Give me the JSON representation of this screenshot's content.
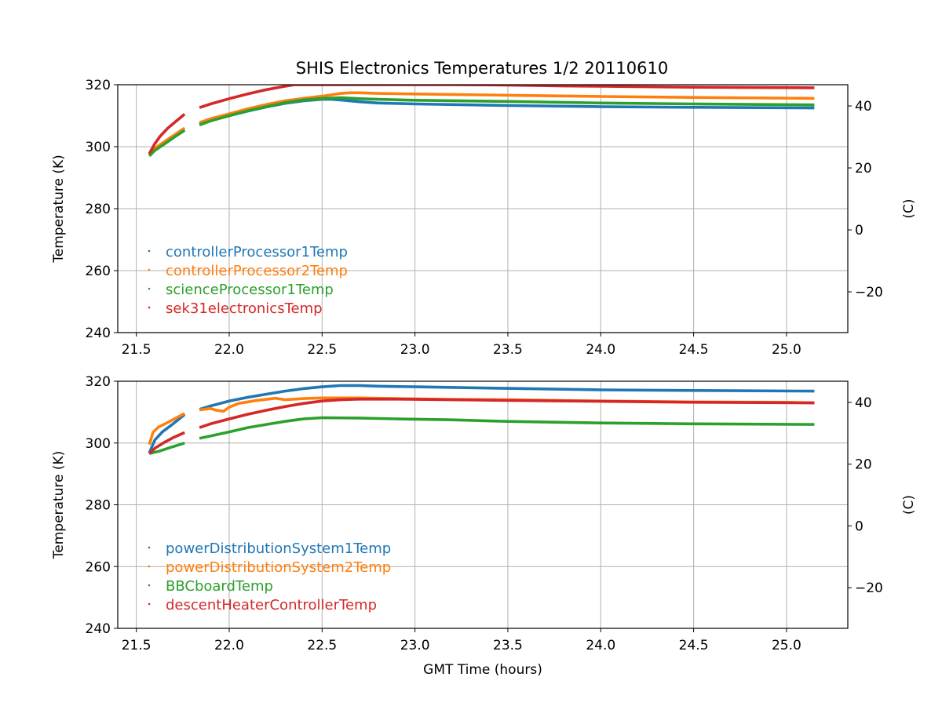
{
  "chart_data": [
    {
      "type": "line",
      "title": "SHIS Electronics Temperatures 1/2 20110610",
      "xlabel": "",
      "ylabel": "Temperature (K)",
      "y2label": "(C)",
      "xlim": [
        21.4,
        25.33
      ],
      "ylim": [
        240,
        320
      ],
      "y2lim": [
        -33.15,
        46.85
      ],
      "xticks": [
        "21.5",
        "22.0",
        "22.5",
        "23.0",
        "23.5",
        "24.0",
        "24.5",
        "25.0"
      ],
      "yticks": [
        "240",
        "260",
        "280",
        "300",
        "320"
      ],
      "y2ticks": [
        "−20",
        "0",
        "20",
        "40"
      ],
      "grid": true,
      "legend_position": "lower-left",
      "series": [
        {
          "name": "controllerProcessor1Temp",
          "color": "#1f77b4",
          "segments": [
            [
              [
                21.57,
                297.2
              ],
              [
                21.6,
                299.0
              ],
              [
                21.65,
                301.0
              ],
              [
                21.7,
                303.0
              ],
              [
                21.76,
                305.4
              ]
            ],
            [
              [
                21.84,
                307.2
              ],
              [
                21.9,
                308.5
              ],
              [
                22.0,
                310.0
              ],
              [
                22.1,
                311.5
              ],
              [
                22.2,
                312.8
              ],
              [
                22.3,
                314.0
              ],
              [
                22.4,
                314.8
              ],
              [
                22.5,
                315.3
              ],
              [
                22.55,
                315.3
              ],
              [
                22.6,
                315.1
              ],
              [
                22.7,
                314.5
              ],
              [
                22.8,
                314.1
              ],
              [
                23.0,
                313.8
              ],
              [
                23.5,
                313.3
              ],
              [
                24.0,
                312.9
              ],
              [
                24.5,
                312.7
              ],
              [
                25.15,
                312.5
              ]
            ]
          ]
        },
        {
          "name": "controllerProcessor2Temp",
          "color": "#ff7f0e",
          "segments": [
            [
              [
                21.57,
                297.5
              ],
              [
                21.6,
                299.5
              ],
              [
                21.65,
                301.6
              ],
              [
                21.7,
                303.6
              ],
              [
                21.76,
                306.0
              ]
            ],
            [
              [
                21.84,
                307.8
              ],
              [
                21.9,
                309.0
              ],
              [
                22.0,
                310.6
              ],
              [
                22.1,
                312.2
              ],
              [
                22.2,
                313.6
              ],
              [
                22.3,
                314.8
              ],
              [
                22.4,
                315.6
              ],
              [
                22.5,
                316.3
              ],
              [
                22.6,
                317.2
              ],
              [
                22.65,
                317.4
              ],
              [
                22.7,
                317.4
              ],
              [
                22.8,
                317.2
              ],
              [
                23.0,
                317.0
              ],
              [
                23.5,
                316.6
              ],
              [
                24.0,
                316.2
              ],
              [
                24.5,
                315.9
              ],
              [
                25.15,
                315.6
              ]
            ]
          ]
        },
        {
          "name": "scienceProcessor1Temp",
          "color": "#2ca02c",
          "segments": [
            [
              [
                21.57,
                297.0
              ],
              [
                21.6,
                298.8
              ],
              [
                21.65,
                300.8
              ],
              [
                21.7,
                302.9
              ],
              [
                21.76,
                305.3
              ]
            ],
            [
              [
                21.84,
                307.0
              ],
              [
                21.9,
                308.3
              ],
              [
                22.0,
                310.0
              ],
              [
                22.1,
                311.6
              ],
              [
                22.2,
                312.9
              ],
              [
                22.3,
                314.2
              ],
              [
                22.4,
                315.1
              ],
              [
                22.5,
                315.6
              ],
              [
                22.6,
                315.8
              ],
              [
                22.7,
                315.5
              ],
              [
                22.8,
                315.3
              ],
              [
                23.0,
                315.0
              ],
              [
                23.5,
                314.6
              ],
              [
                24.0,
                314.1
              ],
              [
                24.5,
                313.8
              ],
              [
                25.15,
                313.5
              ]
            ]
          ]
        },
        {
          "name": "sek31electronicsTemp",
          "color": "#d62728",
          "segments": [
            [
              [
                21.57,
                297.8
              ],
              [
                21.6,
                301.0
              ],
              [
                21.63,
                303.5
              ],
              [
                21.67,
                306.0
              ],
              [
                21.72,
                308.5
              ],
              [
                21.76,
                310.5
              ]
            ],
            [
              [
                21.84,
                312.6
              ],
              [
                21.9,
                313.8
              ],
              [
                22.0,
                315.5
              ],
              [
                22.1,
                317.0
              ],
              [
                22.2,
                318.4
              ],
              [
                22.3,
                319.5
              ],
              [
                22.35,
                320.0
              ],
              [
                22.4,
                320.0
              ],
              [
                23.0,
                320.0
              ],
              [
                23.2,
                320.0
              ],
              [
                23.5,
                319.9
              ],
              [
                23.8,
                319.6
              ],
              [
                24.0,
                319.5
              ],
              [
                24.5,
                319.2
              ],
              [
                25.15,
                319.0
              ]
            ]
          ]
        }
      ]
    },
    {
      "type": "line",
      "title": "",
      "xlabel": "GMT Time (hours)",
      "ylabel": "Temperature (K)",
      "y2label": "(C)",
      "xlim": [
        21.4,
        25.33
      ],
      "ylim": [
        240,
        320
      ],
      "y2lim": [
        -33.15,
        46.85
      ],
      "xticks": [
        "21.5",
        "22.0",
        "22.5",
        "23.0",
        "23.5",
        "24.0",
        "24.5",
        "25.0"
      ],
      "yticks": [
        "240",
        "260",
        "280",
        "300",
        "320"
      ],
      "y2ticks": [
        "−20",
        "0",
        "20",
        "40"
      ],
      "grid": true,
      "legend_position": "lower-left",
      "series": [
        {
          "name": "powerDistributionSystem1Temp",
          "color": "#1f77b4",
          "segments": [
            [
              [
                21.57,
                296.8
              ],
              [
                21.6,
                301.0
              ],
              [
                21.64,
                303.6
              ],
              [
                21.7,
                306.3
              ],
              [
                21.76,
                309.2
              ]
            ],
            [
              [
                21.84,
                310.9
              ],
              [
                21.9,
                312.0
              ],
              [
                22.0,
                313.6
              ],
              [
                22.1,
                314.8
              ],
              [
                22.2,
                315.8
              ],
              [
                22.3,
                316.8
              ],
              [
                22.4,
                317.6
              ],
              [
                22.5,
                318.2
              ],
              [
                22.6,
                318.6
              ],
              [
                22.7,
                318.6
              ],
              [
                22.8,
                318.4
              ],
              [
                23.0,
                318.2
              ],
              [
                23.5,
                317.7
              ],
              [
                24.0,
                317.2
              ],
              [
                24.5,
                317.0
              ],
              [
                25.15,
                316.8
              ]
            ]
          ]
        },
        {
          "name": "powerDistributionSystem2Temp",
          "color": "#ff7f0e",
          "segments": [
            [
              [
                21.57,
                299.5
              ],
              [
                21.59,
                303.5
              ],
              [
                21.62,
                305.2
              ],
              [
                21.68,
                307.0
              ],
              [
                21.76,
                309.6
              ]
            ],
            [
              [
                21.84,
                310.7
              ],
              [
                21.9,
                311.2
              ],
              [
                21.93,
                310.6
              ],
              [
                21.97,
                310.3
              ],
              [
                22.0,
                311.6
              ],
              [
                22.05,
                312.8
              ],
              [
                22.15,
                313.8
              ],
              [
                22.25,
                314.5
              ],
              [
                22.3,
                314.0
              ],
              [
                22.4,
                314.4
              ],
              [
                22.5,
                314.6
              ],
              [
                22.7,
                314.6
              ],
              [
                22.9,
                314.4
              ],
              [
                23.2,
                314.1
              ],
              [
                23.5,
                314.0
              ],
              [
                24.0,
                313.6
              ],
              [
                24.5,
                313.3
              ],
              [
                25.0,
                313.2
              ],
              [
                25.15,
                313.0
              ]
            ]
          ]
        },
        {
          "name": "BBCboardTemp",
          "color": "#2ca02c",
          "segments": [
            [
              [
                21.57,
                296.6
              ],
              [
                21.62,
                297.3
              ],
              [
                21.68,
                298.5
              ],
              [
                21.76,
                300.0
              ]
            ],
            [
              [
                21.84,
                301.5
              ],
              [
                21.9,
                302.3
              ],
              [
                22.0,
                303.6
              ],
              [
                22.1,
                305.0
              ],
              [
                22.2,
                306.0
              ],
              [
                22.3,
                307.0
              ],
              [
                22.4,
                307.8
              ],
              [
                22.5,
                308.2
              ],
              [
                22.7,
                308.1
              ],
              [
                22.9,
                307.8
              ],
              [
                23.2,
                307.5
              ],
              [
                23.5,
                307.0
              ],
              [
                24.0,
                306.5
              ],
              [
                24.5,
                306.2
              ],
              [
                25.15,
                306.0
              ]
            ]
          ]
        },
        {
          "name": "descentHeaterControllerTemp",
          "color": "#d62728",
          "segments": [
            [
              [
                21.57,
                296.5
              ],
              [
                21.6,
                298.3
              ],
              [
                21.65,
                300.2
              ],
              [
                21.7,
                301.8
              ],
              [
                21.76,
                303.4
              ]
            ],
            [
              [
                21.84,
                305.0
              ],
              [
                21.9,
                306.2
              ],
              [
                22.0,
                307.8
              ],
              [
                22.1,
                309.3
              ],
              [
                22.2,
                310.6
              ],
              [
                22.3,
                311.8
              ],
              [
                22.4,
                312.8
              ],
              [
                22.5,
                313.6
              ],
              [
                22.6,
                314.0
              ],
              [
                22.7,
                314.2
              ],
              [
                22.9,
                314.2
              ],
              [
                23.2,
                314.0
              ],
              [
                23.5,
                313.8
              ],
              [
                24.0,
                313.5
              ],
              [
                24.5,
                313.2
              ],
              [
                25.15,
                313.0
              ]
            ]
          ]
        }
      ]
    }
  ]
}
